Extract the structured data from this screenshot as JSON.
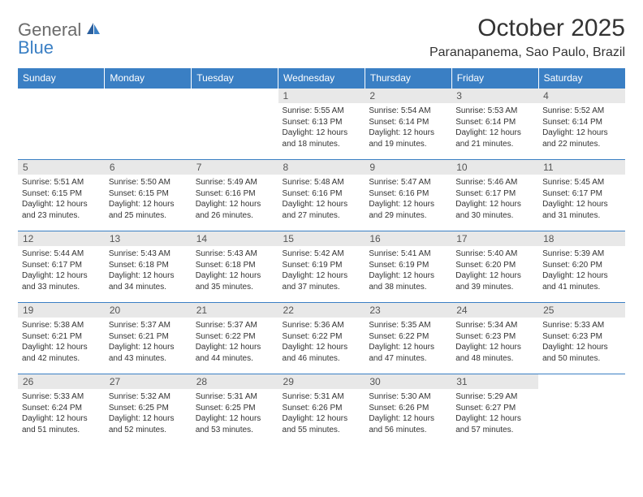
{
  "logo": {
    "general": "General",
    "blue": "Blue"
  },
  "title": "October 2025",
  "location": "Paranapanema, Sao Paulo, Brazil",
  "colors": {
    "header_bg": "#3a7fc4",
    "header_text": "#ffffff",
    "daynum_bg": "#e8e8e8",
    "daynum_text": "#555555",
    "text": "#333333",
    "logo_gray": "#6b6b6b",
    "logo_blue": "#3a7fc4",
    "border": "#3a7fc4",
    "page_bg": "#ffffff"
  },
  "typography": {
    "title_fontsize": 30,
    "location_fontsize": 16,
    "th_fontsize": 12,
    "daynum_fontsize": 12,
    "cell_fontsize": 10,
    "logo_fontsize": 22
  },
  "weekdays": [
    "Sunday",
    "Monday",
    "Tuesday",
    "Wednesday",
    "Thursday",
    "Friday",
    "Saturday"
  ],
  "weeks": [
    [
      null,
      null,
      null,
      {
        "n": "1",
        "sr": "Sunrise: 5:55 AM",
        "ss": "Sunset: 6:13 PM",
        "d1": "Daylight: 12 hours",
        "d2": "and 18 minutes."
      },
      {
        "n": "2",
        "sr": "Sunrise: 5:54 AM",
        "ss": "Sunset: 6:14 PM",
        "d1": "Daylight: 12 hours",
        "d2": "and 19 minutes."
      },
      {
        "n": "3",
        "sr": "Sunrise: 5:53 AM",
        "ss": "Sunset: 6:14 PM",
        "d1": "Daylight: 12 hours",
        "d2": "and 21 minutes."
      },
      {
        "n": "4",
        "sr": "Sunrise: 5:52 AM",
        "ss": "Sunset: 6:14 PM",
        "d1": "Daylight: 12 hours",
        "d2": "and 22 minutes."
      }
    ],
    [
      {
        "n": "5",
        "sr": "Sunrise: 5:51 AM",
        "ss": "Sunset: 6:15 PM",
        "d1": "Daylight: 12 hours",
        "d2": "and 23 minutes."
      },
      {
        "n": "6",
        "sr": "Sunrise: 5:50 AM",
        "ss": "Sunset: 6:15 PM",
        "d1": "Daylight: 12 hours",
        "d2": "and 25 minutes."
      },
      {
        "n": "7",
        "sr": "Sunrise: 5:49 AM",
        "ss": "Sunset: 6:16 PM",
        "d1": "Daylight: 12 hours",
        "d2": "and 26 minutes."
      },
      {
        "n": "8",
        "sr": "Sunrise: 5:48 AM",
        "ss": "Sunset: 6:16 PM",
        "d1": "Daylight: 12 hours",
        "d2": "and 27 minutes."
      },
      {
        "n": "9",
        "sr": "Sunrise: 5:47 AM",
        "ss": "Sunset: 6:16 PM",
        "d1": "Daylight: 12 hours",
        "d2": "and 29 minutes."
      },
      {
        "n": "10",
        "sr": "Sunrise: 5:46 AM",
        "ss": "Sunset: 6:17 PM",
        "d1": "Daylight: 12 hours",
        "d2": "and 30 minutes."
      },
      {
        "n": "11",
        "sr": "Sunrise: 5:45 AM",
        "ss": "Sunset: 6:17 PM",
        "d1": "Daylight: 12 hours",
        "d2": "and 31 minutes."
      }
    ],
    [
      {
        "n": "12",
        "sr": "Sunrise: 5:44 AM",
        "ss": "Sunset: 6:17 PM",
        "d1": "Daylight: 12 hours",
        "d2": "and 33 minutes."
      },
      {
        "n": "13",
        "sr": "Sunrise: 5:43 AM",
        "ss": "Sunset: 6:18 PM",
        "d1": "Daylight: 12 hours",
        "d2": "and 34 minutes."
      },
      {
        "n": "14",
        "sr": "Sunrise: 5:43 AM",
        "ss": "Sunset: 6:18 PM",
        "d1": "Daylight: 12 hours",
        "d2": "and 35 minutes."
      },
      {
        "n": "15",
        "sr": "Sunrise: 5:42 AM",
        "ss": "Sunset: 6:19 PM",
        "d1": "Daylight: 12 hours",
        "d2": "and 37 minutes."
      },
      {
        "n": "16",
        "sr": "Sunrise: 5:41 AM",
        "ss": "Sunset: 6:19 PM",
        "d1": "Daylight: 12 hours",
        "d2": "and 38 minutes."
      },
      {
        "n": "17",
        "sr": "Sunrise: 5:40 AM",
        "ss": "Sunset: 6:20 PM",
        "d1": "Daylight: 12 hours",
        "d2": "and 39 minutes."
      },
      {
        "n": "18",
        "sr": "Sunrise: 5:39 AM",
        "ss": "Sunset: 6:20 PM",
        "d1": "Daylight: 12 hours",
        "d2": "and 41 minutes."
      }
    ],
    [
      {
        "n": "19",
        "sr": "Sunrise: 5:38 AM",
        "ss": "Sunset: 6:21 PM",
        "d1": "Daylight: 12 hours",
        "d2": "and 42 minutes."
      },
      {
        "n": "20",
        "sr": "Sunrise: 5:37 AM",
        "ss": "Sunset: 6:21 PM",
        "d1": "Daylight: 12 hours",
        "d2": "and 43 minutes."
      },
      {
        "n": "21",
        "sr": "Sunrise: 5:37 AM",
        "ss": "Sunset: 6:22 PM",
        "d1": "Daylight: 12 hours",
        "d2": "and 44 minutes."
      },
      {
        "n": "22",
        "sr": "Sunrise: 5:36 AM",
        "ss": "Sunset: 6:22 PM",
        "d1": "Daylight: 12 hours",
        "d2": "and 46 minutes."
      },
      {
        "n": "23",
        "sr": "Sunrise: 5:35 AM",
        "ss": "Sunset: 6:22 PM",
        "d1": "Daylight: 12 hours",
        "d2": "and 47 minutes."
      },
      {
        "n": "24",
        "sr": "Sunrise: 5:34 AM",
        "ss": "Sunset: 6:23 PM",
        "d1": "Daylight: 12 hours",
        "d2": "and 48 minutes."
      },
      {
        "n": "25",
        "sr": "Sunrise: 5:33 AM",
        "ss": "Sunset: 6:23 PM",
        "d1": "Daylight: 12 hours",
        "d2": "and 50 minutes."
      }
    ],
    [
      {
        "n": "26",
        "sr": "Sunrise: 5:33 AM",
        "ss": "Sunset: 6:24 PM",
        "d1": "Daylight: 12 hours",
        "d2": "and 51 minutes."
      },
      {
        "n": "27",
        "sr": "Sunrise: 5:32 AM",
        "ss": "Sunset: 6:25 PM",
        "d1": "Daylight: 12 hours",
        "d2": "and 52 minutes."
      },
      {
        "n": "28",
        "sr": "Sunrise: 5:31 AM",
        "ss": "Sunset: 6:25 PM",
        "d1": "Daylight: 12 hours",
        "d2": "and 53 minutes."
      },
      {
        "n": "29",
        "sr": "Sunrise: 5:31 AM",
        "ss": "Sunset: 6:26 PM",
        "d1": "Daylight: 12 hours",
        "d2": "and 55 minutes."
      },
      {
        "n": "30",
        "sr": "Sunrise: 5:30 AM",
        "ss": "Sunset: 6:26 PM",
        "d1": "Daylight: 12 hours",
        "d2": "and 56 minutes."
      },
      {
        "n": "31",
        "sr": "Sunrise: 5:29 AM",
        "ss": "Sunset: 6:27 PM",
        "d1": "Daylight: 12 hours",
        "d2": "and 57 minutes."
      },
      null
    ]
  ]
}
